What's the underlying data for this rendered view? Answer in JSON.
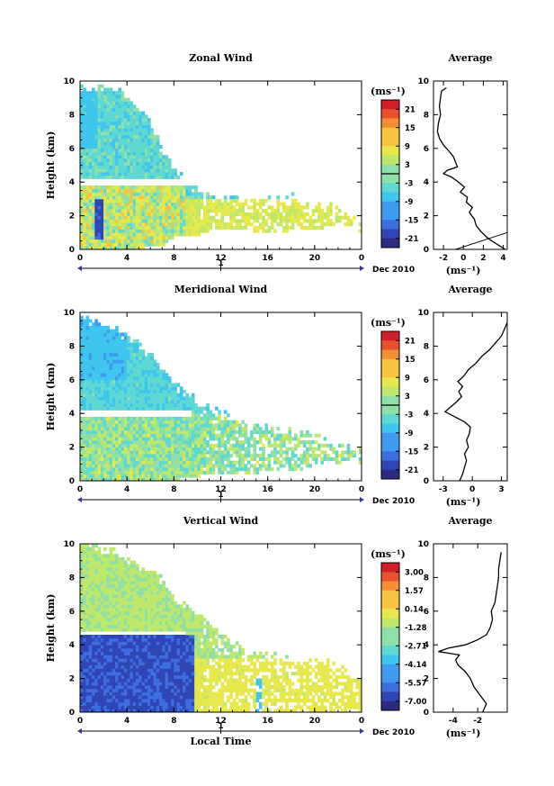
{
  "chart_data": [
    {
      "type": "heatmap",
      "title": "Zonal Wind",
      "ylabel": "Height (km)",
      "xlabel": "",
      "date_label": "Dec 2010",
      "day_label": "1",
      "day_ticks": [],
      "xlim": [
        0,
        24
      ],
      "ylim": [
        0,
        10
      ],
      "xticks": [
        "0",
        "4",
        "8",
        "12",
        "16",
        "20",
        "0"
      ],
      "yticks": [
        "0",
        "2",
        "4",
        "6",
        "8",
        "10"
      ],
      "colorbar": {
        "unit": "(ms⁻¹)",
        "ticks": [
          "21",
          "15",
          "9",
          "3",
          "-3",
          "-9",
          "-15",
          "-21"
        ],
        "range": [
          -24,
          24
        ],
        "zero_line": 0
      },
      "average": {
        "title": "Average",
        "unit": "(ms⁻¹)",
        "xticks": [
          "-2",
          "0",
          "2",
          "4"
        ],
        "xlim": [
          -3,
          4.4
        ],
        "xticks_num": [
          -2,
          0,
          2,
          4
        ],
        "yticks": [
          "0",
          "2",
          "4",
          "6",
          "8",
          "10"
        ],
        "profile": [
          [
            4.2,
            0
          ],
          [
            3.4,
            0.3
          ],
          [
            2.6,
            0.6
          ],
          [
            2.2,
            0.8
          ],
          [
            1.7,
            1.1
          ],
          [
            1.3,
            1.4
          ],
          [
            1.1,
            1.8
          ],
          [
            0.6,
            2.2
          ],
          [
            0.9,
            2.5
          ],
          [
            0.3,
            2.8
          ],
          [
            0.4,
            3.1
          ],
          [
            -0.3,
            3.4
          ],
          [
            0.1,
            3.7
          ],
          [
            -0.5,
            4.0
          ],
          [
            -1.2,
            4.3
          ],
          [
            -2.0,
            4.5
          ],
          [
            -1.6,
            4.7
          ],
          [
            -0.6,
            4.9
          ],
          [
            -0.8,
            5.2
          ],
          [
            -1.0,
            5.5
          ],
          [
            -1.4,
            5.8
          ],
          [
            -2.0,
            6.2
          ],
          [
            -2.4,
            6.6
          ],
          [
            -2.6,
            7.0
          ],
          [
            -2.5,
            7.5
          ],
          [
            -2.3,
            8.0
          ],
          [
            -2.4,
            8.5
          ],
          [
            -2.3,
            9.0
          ],
          [
            -2.2,
            9.4
          ],
          [
            -1.7,
            9.6
          ]
        ],
        "guide": [
          [
            -0.8,
            0
          ],
          [
            4.4,
            1.0
          ]
        ]
      },
      "mask_top": [
        9.6,
        9.6,
        9.6,
        9.5,
        9.0,
        8.3,
        7.5,
        5.6,
        4.6,
        4.2,
        3.3,
        3.3,
        3.0,
        3.0,
        3.1,
        3.0,
        3.0,
        3.0,
        3.1,
        2.9,
        2.6,
        2.6,
        2.4,
        2.0,
        1.3
      ],
      "mask_bottom": [
        0,
        0,
        0,
        0,
        0,
        0,
        0.3,
        0.3,
        0.8,
        0.8,
        0.8,
        1.2,
        1.2,
        1.2,
        1.2,
        1.0,
        1.0,
        1.0,
        1.2,
        1.3,
        1.2,
        1.4,
        1.5,
        1.4,
        1.0
      ],
      "gap": [
        3.9,
        4.3,
        0,
        9.5
      ]
    },
    {
      "type": "heatmap",
      "title": "Meridional Wind",
      "ylabel": "Height (km)",
      "xlabel": "",
      "date_label": "Dec 2010",
      "day_label": "1",
      "day_ticks": [],
      "xlim": [
        0,
        24
      ],
      "ylim": [
        0,
        10
      ],
      "xticks": [
        "0",
        "4",
        "8",
        "12",
        "16",
        "20",
        "0"
      ],
      "yticks": [
        "0",
        "2",
        "4",
        "6",
        "8",
        "10"
      ],
      "colorbar": {
        "unit": "(ms⁻¹)",
        "ticks": [
          "21",
          "15",
          "9",
          "3",
          "-3",
          "-9",
          "-15",
          "-21"
        ],
        "range": [
          -24,
          24
        ],
        "zero_line": 0
      },
      "average": {
        "title": "Average",
        "unit": "(ms⁻¹)",
        "xticks": [
          "-3",
          "0",
          "3"
        ],
        "xlim": [
          -4,
          3.6
        ],
        "xticks_num": [
          -3,
          0,
          3
        ],
        "yticks": [
          "0",
          "2",
          "4",
          "6",
          "8",
          "10"
        ],
        "profile": [
          [
            -1.3,
            0
          ],
          [
            -1.0,
            0.4
          ],
          [
            -0.8,
            0.8
          ],
          [
            -0.6,
            1.2
          ],
          [
            -0.8,
            1.6
          ],
          [
            -0.4,
            2.0
          ],
          [
            -0.6,
            2.4
          ],
          [
            -0.3,
            2.8
          ],
          [
            -0.2,
            3.2
          ],
          [
            -0.8,
            3.5
          ],
          [
            -1.8,
            3.8
          ],
          [
            -2.8,
            4.1
          ],
          [
            -2.2,
            4.4
          ],
          [
            -1.6,
            4.7
          ],
          [
            -1.1,
            5.0
          ],
          [
            -1.4,
            5.3
          ],
          [
            -1.0,
            5.6
          ],
          [
            -1.5,
            5.9
          ],
          [
            -0.9,
            6.2
          ],
          [
            -0.4,
            6.6
          ],
          [
            0.4,
            7.0
          ],
          [
            1.0,
            7.4
          ],
          [
            1.8,
            7.8
          ],
          [
            2.4,
            8.2
          ],
          [
            3.0,
            8.6
          ],
          [
            3.3,
            9.0
          ],
          [
            3.6,
            9.4
          ]
        ],
        "guide": []
      },
      "mask_top": [
        9.7,
        9.5,
        9.2,
        8.9,
        8.6,
        8.0,
        7.4,
        6.5,
        5.6,
        5.2,
        4.5,
        4.3,
        4.0,
        3.6,
        3.4,
        3.3,
        3.2,
        3.1,
        3.0,
        2.8,
        2.6,
        2.3,
        2.2,
        2.0,
        1.5
      ],
      "mask_bottom": [
        0,
        0,
        0,
        0,
        0,
        0,
        0,
        0,
        0,
        0.3,
        0.3,
        0.4,
        0.4,
        0.4,
        0.5,
        0.5,
        0.6,
        0.6,
        0.7,
        0.7,
        0.9,
        0.9,
        1.1,
        1.2,
        1.0
      ],
      "gap": [
        3.9,
        4.3,
        0,
        9.3
      ]
    },
    {
      "type": "heatmap",
      "title": "Vertical Wind",
      "ylabel": "Height (km)",
      "xlabel": "Local Time",
      "date_label": "Dec 2010",
      "day_label": "1",
      "day_ticks": [],
      "xlim": [
        0,
        24
      ],
      "ylim": [
        0,
        10
      ],
      "xticks": [
        "0",
        "4",
        "8",
        "12",
        "16",
        "20",
        "0"
      ],
      "yticks": [
        "0",
        "2",
        "4",
        "6",
        "8",
        "10"
      ],
      "colorbar": {
        "unit": "(ms⁻¹)",
        "ticks": [
          "3.00",
          "1.57",
          "0.14",
          "-1.28",
          "-2.71",
          "-4.14",
          "-5.57",
          "-7.00"
        ],
        "range": [
          -8,
          4
        ],
        "zero_line": null
      },
      "average": {
        "title": "Average",
        "unit": "(ms⁻¹)",
        "xticks": [
          "-4",
          "-2"
        ],
        "xlim": [
          -5.6,
          0.4
        ],
        "xticks_num": [
          -4,
          -2
        ],
        "yticks": [
          "0",
          "2",
          "4",
          "6",
          "8",
          "10"
        ],
        "profile": [
          [
            -1.6,
            0
          ],
          [
            -1.3,
            0.5
          ],
          [
            -1.8,
            1.0
          ],
          [
            -2.3,
            1.5
          ],
          [
            -2.6,
            2.0
          ],
          [
            -3.0,
            2.4
          ],
          [
            -3.6,
            2.8
          ],
          [
            -3.8,
            3.1
          ],
          [
            -3.5,
            3.4
          ],
          [
            -5.2,
            3.6
          ],
          [
            -4.4,
            3.8
          ],
          [
            -3.0,
            4.0
          ],
          [
            -2.0,
            4.3
          ],
          [
            -1.3,
            4.6
          ],
          [
            -1.0,
            5.0
          ],
          [
            -0.8,
            5.5
          ],
          [
            -0.9,
            6.0
          ],
          [
            -0.6,
            6.5
          ],
          [
            -0.5,
            7.0
          ],
          [
            -0.4,
            7.5
          ],
          [
            -0.3,
            8.0
          ],
          [
            -0.3,
            8.5
          ],
          [
            -0.2,
            9.0
          ],
          [
            -0.1,
            9.5
          ]
        ],
        "guide": []
      },
      "mask_top": [
        9.9,
        9.8,
        9.7,
        9.4,
        9.0,
        8.7,
        8.4,
        7.8,
        6.5,
        6.2,
        5.8,
        5.0,
        4.6,
        4.0,
        3.6,
        3.4,
        3.3,
        3.2,
        3.1,
        3.0,
        3.0,
        3.0,
        2.8,
        2.2,
        1.8
      ],
      "mask_bottom": [
        0,
        0,
        0,
        0,
        0,
        0,
        0,
        0,
        0,
        0,
        0,
        0,
        0,
        0,
        0,
        0,
        0,
        0,
        0,
        0,
        0,
        0,
        0,
        0,
        0
      ],
      "gap": [
        4.6,
        4.9,
        0,
        8.8
      ]
    }
  ]
}
